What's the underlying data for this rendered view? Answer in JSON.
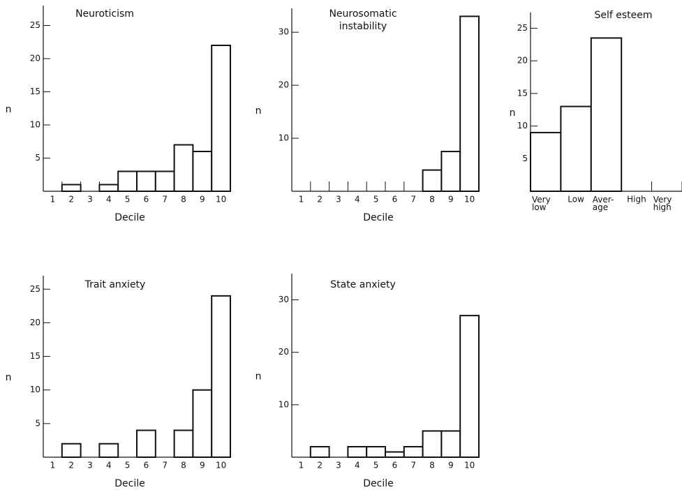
{
  "chart_data": [
    {
      "type": "bar",
      "title": "Neuroticism",
      "xlabel": "Decile",
      "ylabel": "n",
      "categories": [
        "1",
        "2",
        "3",
        "4",
        "5",
        "6",
        "7",
        "8",
        "9",
        "10"
      ],
      "values": [
        0,
        1,
        0,
        1,
        3,
        3,
        3,
        7,
        6,
        22
      ],
      "ylim": [
        0,
        28
      ],
      "yticks": [
        5,
        10,
        15,
        20,
        25
      ]
    },
    {
      "type": "bar",
      "title": "Neurosomatic instability",
      "xlabel": "Decile",
      "ylabel": "n",
      "categories": [
        "1",
        "2",
        "3",
        "4",
        "5",
        "6",
        "7",
        "8",
        "9",
        "10"
      ],
      "values": [
        0,
        0,
        0,
        0,
        0,
        0,
        0,
        4,
        7.5,
        33
      ],
      "ylim": [
        0,
        34.5
      ],
      "yticks": [
        10,
        20,
        30
      ]
    },
    {
      "type": "bar",
      "title": "Self esteem",
      "ylabel": "n",
      "categories": [
        "Very low",
        "Low",
        "Aver- age",
        "High",
        "Very high"
      ],
      "values": [
        9,
        13,
        23.5,
        0,
        0
      ],
      "ylim": [
        0,
        27.4
      ],
      "yticks": [
        5,
        10,
        15,
        20,
        25
      ]
    },
    {
      "type": "bar",
      "title": "Trait anxiety",
      "xlabel": "Decile",
      "ylabel": "n",
      "categories": [
        "1",
        "2",
        "3",
        "4",
        "5",
        "6",
        "7",
        "8",
        "9",
        "10"
      ],
      "values": [
        0,
        2,
        0,
        2,
        0,
        4,
        0,
        4,
        10,
        24
      ],
      "ylim": [
        0,
        27
      ],
      "yticks": [
        5,
        10,
        15,
        20,
        25
      ]
    },
    {
      "type": "bar",
      "title": "State anxiety",
      "xlabel": "Decile",
      "ylabel": "n",
      "categories": [
        "1",
        "2",
        "3",
        "4",
        "5",
        "6",
        "7",
        "8",
        "9",
        "10"
      ],
      "values": [
        0,
        2,
        0,
        2,
        2,
        1,
        2,
        5,
        5,
        27
      ],
      "ylim": [
        0,
        35
      ],
      "yticks": [
        10,
        20,
        30
      ]
    }
  ]
}
